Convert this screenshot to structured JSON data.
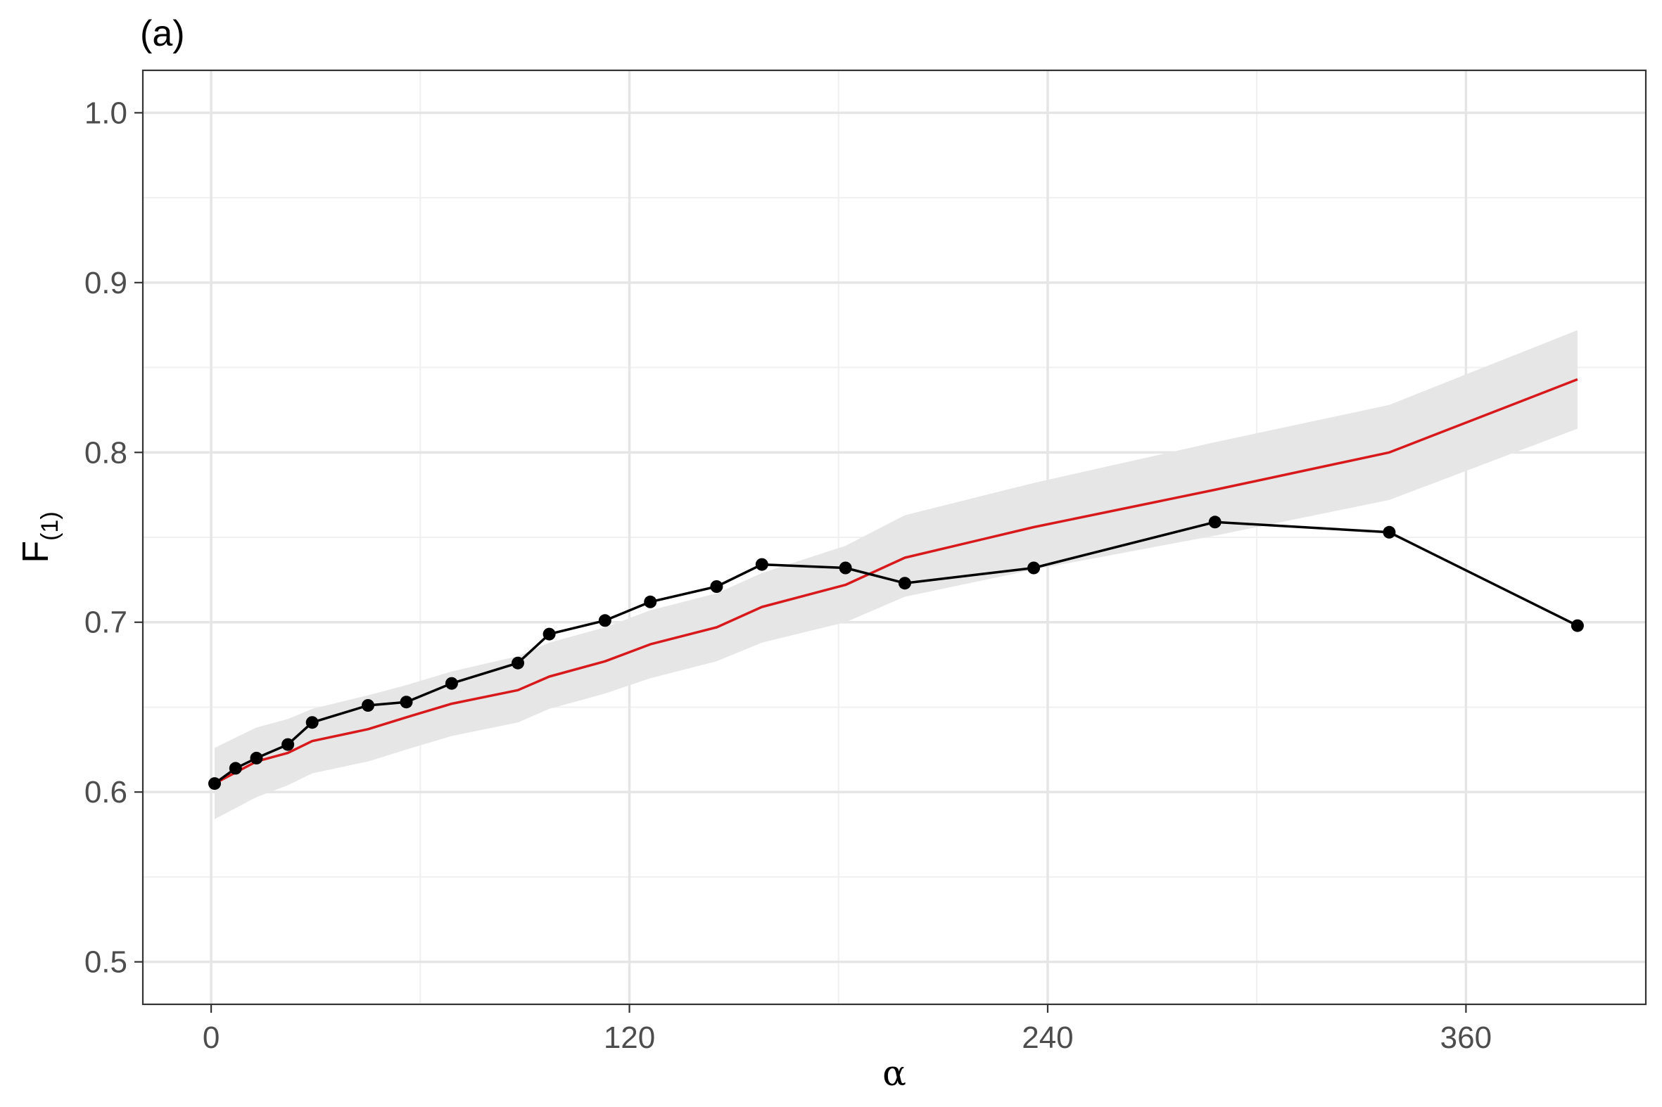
{
  "chart_data": {
    "type": "line",
    "panel_label": "(a)",
    "xlabel": "α",
    "ylabel_main": "F",
    "ylabel_sub": "(1)",
    "xlim": [
      -19.6,
      411.6
    ],
    "ylim": [
      0.475,
      1.025
    ],
    "x_ticks": [
      0,
      120,
      240,
      360
    ],
    "x_tick_labels": [
      "0",
      "120",
      "240",
      "360"
    ],
    "x_minor_ticks": [
      60,
      180,
      300
    ],
    "y_ticks": [
      0.5,
      0.6,
      0.7,
      0.8,
      0.9,
      1.0
    ],
    "y_tick_labels": [
      "0.5",
      "0.6",
      "0.7",
      "0.8",
      "0.9",
      "1.0"
    ],
    "y_minor_ticks": [
      0.55,
      0.65,
      0.75,
      0.85,
      0.95
    ],
    "grid": true,
    "legend": "none",
    "colors": {
      "observed": "#000000",
      "expected": "#d7191c",
      "band": "#e6e6e6",
      "grid_major": "#e5e5e5",
      "grid_minor": "#f0f0f0",
      "panel_border": "#333333"
    },
    "series": [
      {
        "type": "line+points",
        "x": [
          1,
          7,
          13,
          22,
          29,
          45,
          56,
          69,
          88,
          97,
          113,
          126,
          145,
          158,
          182,
          199,
          236,
          288,
          338,
          392
        ],
        "y": [
          0.605,
          0.614,
          0.62,
          0.628,
          0.641,
          0.651,
          0.653,
          0.664,
          0.676,
          0.693,
          0.701,
          0.712,
          0.721,
          0.734,
          0.732,
          0.723,
          0.732,
          0.759,
          0.753,
          0.698
        ]
      },
      {
        "type": "line",
        "x": [
          1,
          13,
          22,
          29,
          45,
          56,
          69,
          88,
          97,
          113,
          126,
          145,
          158,
          182,
          199,
          236,
          288,
          338,
          392
        ],
        "y": [
          0.605,
          0.618,
          0.623,
          0.63,
          0.637,
          0.644,
          0.652,
          0.66,
          0.668,
          0.677,
          0.687,
          0.697,
          0.709,
          0.722,
          0.738,
          0.756,
          0.778,
          0.8,
          0.843
        ]
      },
      {
        "type": "ribbon",
        "x": [
          1,
          13,
          22,
          29,
          45,
          56,
          69,
          88,
          97,
          113,
          126,
          145,
          158,
          182,
          199,
          236,
          288,
          338,
          392
        ],
        "lower": [
          0.584,
          0.597,
          0.604,
          0.611,
          0.618,
          0.625,
          0.633,
          0.641,
          0.649,
          0.658,
          0.667,
          0.677,
          0.688,
          0.7,
          0.715,
          0.731,
          0.751,
          0.772,
          0.814
        ],
        "upper": [
          0.626,
          0.638,
          0.643,
          0.649,
          0.657,
          0.663,
          0.671,
          0.68,
          0.688,
          0.697,
          0.707,
          0.717,
          0.729,
          0.745,
          0.763,
          0.782,
          0.806,
          0.828,
          0.872
        ]
      }
    ]
  }
}
